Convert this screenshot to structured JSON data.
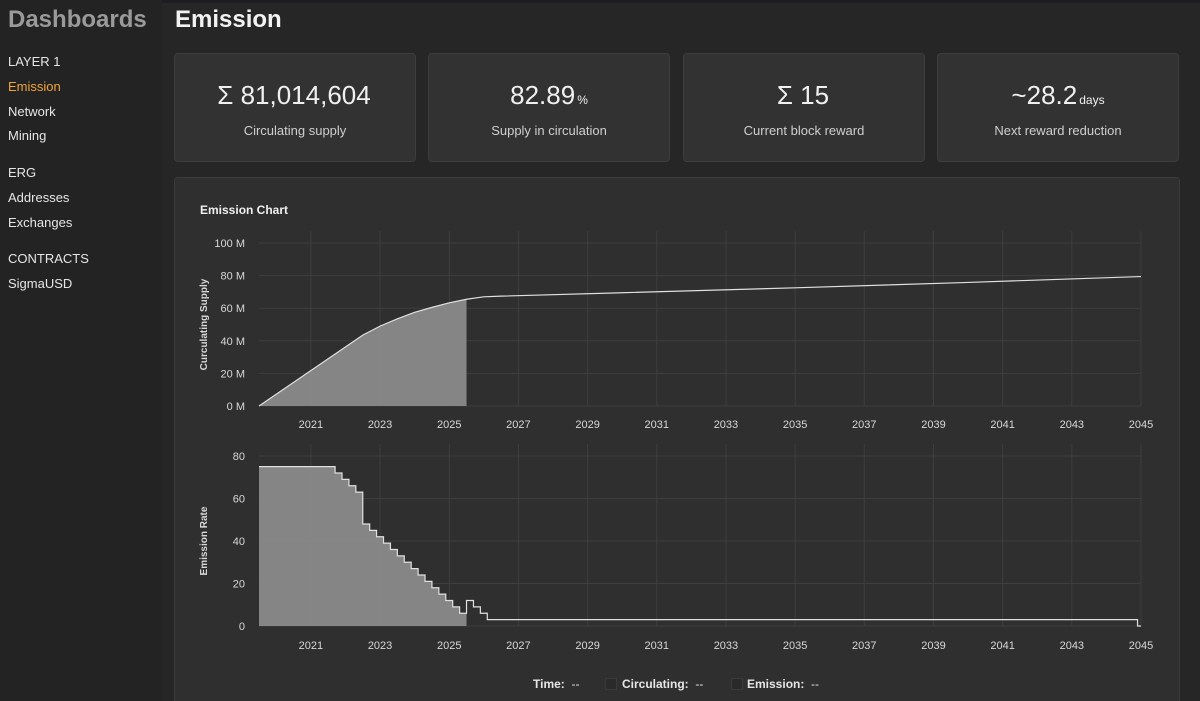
{
  "sidebar": {
    "brand": "Dashboards",
    "sections": [
      {
        "title": "LAYER 1",
        "items": [
          "Emission",
          "Network",
          "Mining"
        ]
      },
      {
        "title": "ERG",
        "items": [
          "Addresses",
          "Exchanges"
        ]
      },
      {
        "title": "CONTRACTS",
        "items": [
          "SigmaUSD"
        ]
      }
    ],
    "active_item": "Emission",
    "accent_color": "#f0a33a"
  },
  "page": {
    "title": "Emission"
  },
  "stats": [
    {
      "value": "Σ 81,014,604",
      "unit": "",
      "label": "Circulating supply"
    },
    {
      "value": "82.89",
      "unit": "%",
      "label": "Supply in circulation"
    },
    {
      "value": "Σ 15",
      "unit": "",
      "label": "Current block reward"
    },
    {
      "value": "~28.2",
      "unit": "days",
      "label": "Next reward reduction"
    }
  ],
  "chart": {
    "title": "Emission Chart"
  },
  "chart_data": [
    {
      "type": "area",
      "ylabel": "Curculating Supply",
      "xticks": [
        "2021",
        "2023",
        "2025",
        "2027",
        "2029",
        "2031",
        "2033",
        "2035",
        "2037",
        "2039",
        "2041",
        "2043",
        "2045"
      ],
      "yticks": [
        "0 M",
        "20 M",
        "40 M",
        "60 M",
        "80 M",
        "100 M"
      ],
      "xlim": [
        2019.5,
        2045
      ],
      "ylim": [
        0,
        100
      ],
      "filled_until": 2025.5,
      "x": [
        2019.5,
        2020.5,
        2021.5,
        2022.5,
        2023.0,
        2023.5,
        2024.0,
        2024.5,
        2025.0,
        2025.5,
        2026.0,
        2026.5,
        2030,
        2035,
        2040,
        2045
      ],
      "y": [
        0,
        14.5,
        29,
        43.5,
        49,
        53.5,
        57.5,
        60.5,
        63.3,
        65.5,
        67.0,
        67.4,
        69.5,
        72.5,
        75.8,
        79.4
      ]
    },
    {
      "type": "area",
      "ylabel": "Emission Rate",
      "xticks": [
        "2021",
        "2023",
        "2025",
        "2027",
        "2029",
        "2031",
        "2033",
        "2035",
        "2037",
        "2039",
        "2041",
        "2043",
        "2045"
      ],
      "yticks": [
        "0",
        "20",
        "40",
        "60",
        "80"
      ],
      "xlim": [
        2019.5,
        2045
      ],
      "ylim": [
        0,
        80
      ],
      "filled_until": 2025.5,
      "x": [
        2019.5,
        2021.5,
        2021.7,
        2021.9,
        2022.1,
        2022.3,
        2022.5,
        2022.7,
        2022.9,
        2023.1,
        2023.3,
        2023.5,
        2023.7,
        2023.9,
        2024.1,
        2024.3,
        2024.5,
        2024.7,
        2024.9,
        2025.1,
        2025.3,
        2025.5,
        2025.7,
        2025.9,
        2026.1,
        2026.3,
        2026.5,
        2044.8,
        2044.9,
        2045
      ],
      "y": [
        75,
        75,
        72,
        69,
        66,
        63,
        48,
        45,
        42,
        39,
        36,
        33,
        30,
        27,
        24,
        21,
        18,
        15,
        12,
        9,
        6,
        12,
        9,
        6,
        3,
        3,
        3,
        3,
        0,
        0
      ]
    }
  ],
  "legend": {
    "time_label": "Time:",
    "time_value": "--",
    "circ_label": "Circulating:",
    "circ_value": "--",
    "emis_label": "Emission:",
    "emis_value": "--"
  }
}
